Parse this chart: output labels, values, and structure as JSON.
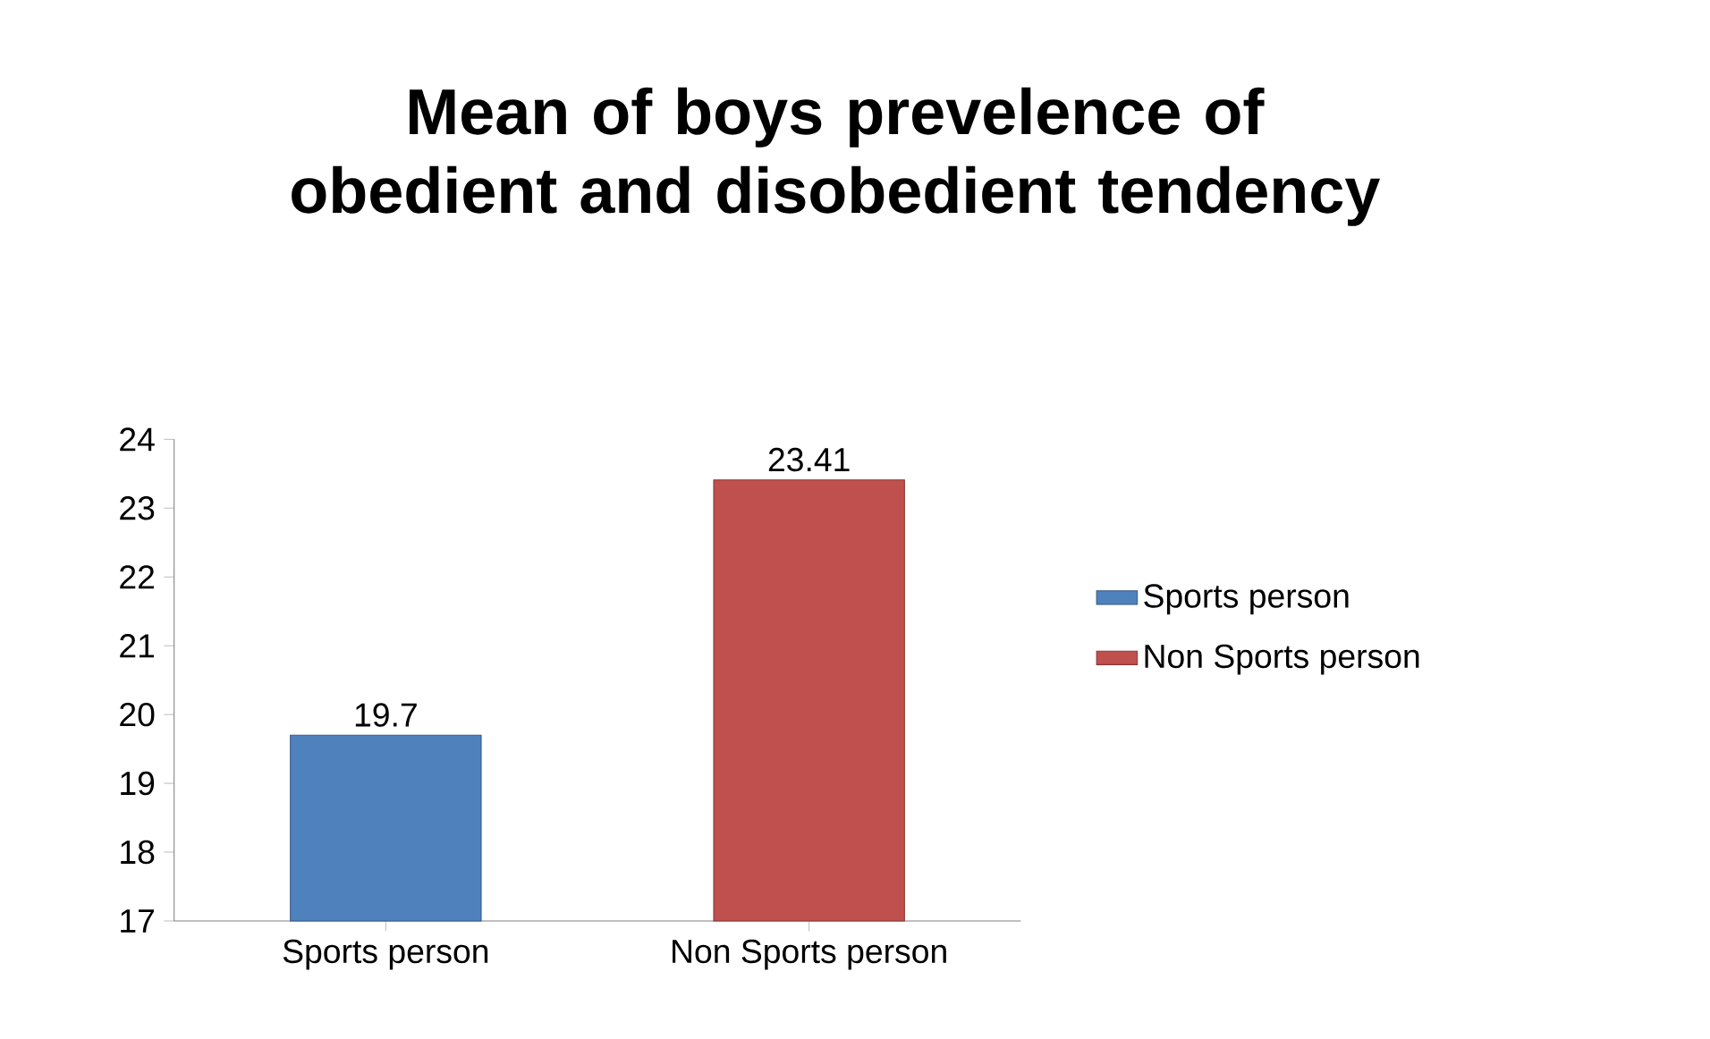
{
  "chart_data": {
    "type": "bar",
    "title": "Mean of boys prevelence of obedient and disobedient tendency",
    "categories": [
      "Sports person",
      "Non Sports person"
    ],
    "series": [
      {
        "name": "Sports person",
        "color": "#4f81bd",
        "values": [
          19.7,
          null
        ]
      },
      {
        "name": "Non Sports person",
        "color": "#c0504d",
        "values": [
          null,
          23.41
        ]
      }
    ],
    "ylim": [
      17,
      24
    ],
    "yticks": [
      17,
      18,
      19,
      20,
      21,
      22,
      23,
      24
    ],
    "data_labels": true,
    "legend": "right",
    "grid": false
  }
}
